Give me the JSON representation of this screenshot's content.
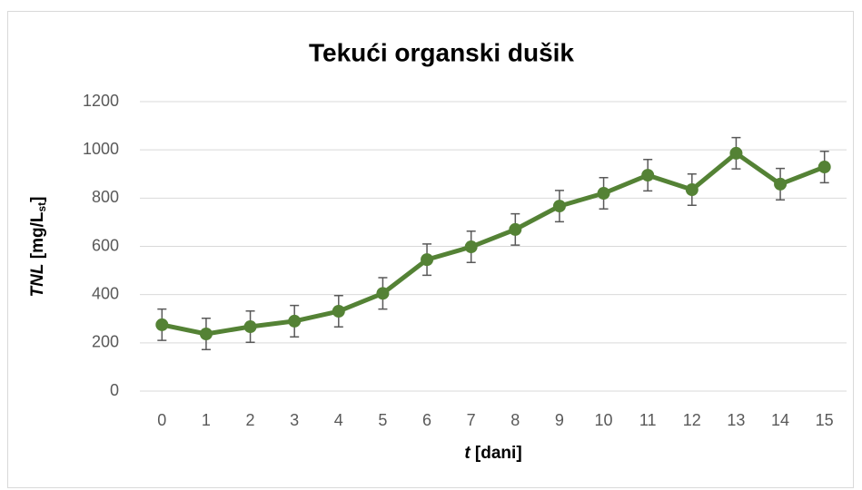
{
  "chart_data": {
    "type": "line",
    "title": "Tekući organski dušik",
    "x_label": [
      "t",
      " [dani]"
    ],
    "y_label": [
      "TNL",
      " [mg/L",
      "st",
      "]"
    ],
    "categories": [
      "0",
      "1",
      "2",
      "3",
      "4",
      "5",
      "6",
      "7",
      "8",
      "9",
      "10",
      "11",
      "12",
      "13",
      "14",
      "15"
    ],
    "series": [
      {
        "name": "TNL",
        "color": "#548235",
        "values": [
          275,
          237,
          267,
          290,
          331,
          405,
          545,
          598,
          670,
          767,
          820,
          895,
          835,
          986,
          858,
          929
        ],
        "errors": [
          65,
          65,
          65,
          65,
          65,
          65,
          65,
          65,
          65,
          65,
          65,
          65,
          65,
          65,
          65,
          65
        ]
      }
    ],
    "ylim": [
      0,
      1200
    ],
    "yticks": [
      0,
      200,
      400,
      600,
      800,
      1000,
      1200
    ],
    "grid": true
  }
}
